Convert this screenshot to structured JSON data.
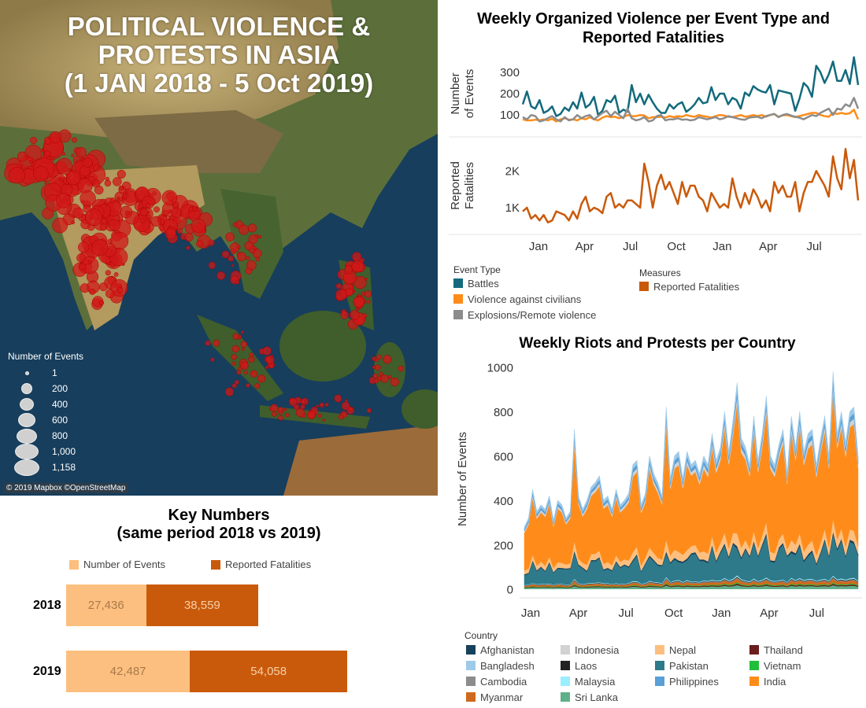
{
  "map": {
    "title_lines": [
      "POLITICAL VIOLENCE &",
      "PROTESTS IN ASIA",
      "(1 JAN 2018 - 5 Oct 2019)"
    ],
    "legend_title": "Number of Events",
    "legend_items": [
      {
        "label": "1",
        "value": 1
      },
      {
        "label": "200",
        "value": 200
      },
      {
        "label": "400",
        "value": 400
      },
      {
        "label": "600",
        "value": 600
      },
      {
        "label": "800",
        "value": 800
      },
      {
        "label": "1,000",
        "value": 1000
      },
      {
        "label": "1,158",
        "value": 1158
      }
    ],
    "credit": "© 2019 Mapbox ©OpenStreetMap",
    "colors": {
      "ocean": "#173e5c",
      "land": "#4a6a30",
      "desert": "#b09a64",
      "marker": "#d01818"
    }
  },
  "key_numbers": {
    "title_lines": [
      "Key Numbers",
      "(same period 2018 vs 2019)"
    ],
    "legend": [
      {
        "label": "Number of Events",
        "color": "#fdbf7f"
      },
      {
        "label": "Reported Fatalities",
        "color": "#c95a0b"
      }
    ]
  },
  "legends": {
    "event_type_title": "Event Type",
    "event_types": [
      {
        "label": "Battles",
        "color": "#136a7c"
      },
      {
        "label": "Violence against civilians",
        "color": "#ff8c1a"
      },
      {
        "label": "Explosions/Remote violence",
        "color": "#8c8c8c"
      }
    ],
    "measures_title": "Measures",
    "measures": [
      {
        "label": "Reported Fatalities",
        "color": "#c95a0b"
      }
    ],
    "country_title": "Country",
    "countries": [
      {
        "label": "Afghanistan",
        "color": "#17405a"
      },
      {
        "label": "Indonesia",
        "color": "#d2d2d2"
      },
      {
        "label": "Nepal",
        "color": "#fdbf7f"
      },
      {
        "label": "Thailand",
        "color": "#6b1c1c"
      },
      {
        "label": "Bangladesh",
        "color": "#9ecae9"
      },
      {
        "label": "Laos",
        "color": "#222222"
      },
      {
        "label": "Pakistan",
        "color": "#2f7a8a"
      },
      {
        "label": "Vietnam",
        "color": "#1fbf3a"
      },
      {
        "label": "Cambodia",
        "color": "#8c8c8c"
      },
      {
        "label": "Malaysia",
        "color": "#99eeff"
      },
      {
        "label": "Philippines",
        "color": "#5a9fd6"
      },
      {
        "label": "India",
        "color": "#ff8c1a"
      },
      {
        "label": "Myanmar",
        "color": "#cf6a1c"
      },
      {
        "label": "Sri Lanka",
        "color": "#5fb08a"
      }
    ]
  },
  "chart_data": [
    {
      "type": "line",
      "title": "Weekly Organized Violence per Event Type and Reported Fatalities",
      "x_tick_labels": [
        "Jan",
        "Apr",
        "Jul",
        "Oct",
        "Jan",
        "Apr",
        "Jul"
      ],
      "panels": [
        {
          "ylabel": "Number of Events",
          "y_ticks": [
            {
              "label": "100",
              "value": 100
            },
            {
              "label": "200",
              "value": 200
            },
            {
              "label": "300",
              "value": 300
            }
          ],
          "ylim": [
            20,
            380
          ],
          "series": [
            {
              "name": "Battles",
              "color": "#136a7c",
              "values": [
                150,
                210,
                140,
                130,
                170,
                110,
                120,
                140,
                95,
                105,
                135,
                120,
                160,
                130,
                205,
                135,
                150,
                185,
                100,
                120,
                170,
                160,
                190,
                110,
                125,
                115,
                240,
                160,
                200,
                150,
                195,
                160,
                130,
                110,
                110,
                150,
                130,
                150,
                160,
                115,
                130,
                150,
                180,
                155,
                160,
                230,
                170,
                200,
                200,
                150,
                180,
                170,
                130,
                205,
                190,
                235,
                220,
                210,
                205,
                240,
                150,
                215,
                210,
                205,
                200,
                120,
                175,
                250,
                230,
                185,
                330,
                300,
                250,
                290,
                350,
                260,
                260,
                310,
                245,
                370,
                240
              ]
            },
            {
              "name": "Violence against civilians",
              "color": "#ff8c1a",
              "values": [
                80,
                75,
                75,
                78,
                76,
                80,
                75,
                82,
                70,
                80,
                85,
                78,
                80,
                75,
                85,
                80,
                90,
                80,
                75,
                88,
                95,
                90,
                92,
                85,
                90,
                100,
                95,
                95,
                100,
                98,
                85,
                90,
                90,
                92,
                88,
                95,
                90,
                95,
                92,
                100,
                95,
                92,
                100,
                95,
                92,
                88,
                95,
                100,
                98,
                92,
                90,
                95,
                100,
                92,
                95,
                100,
                95,
                100,
                92,
                100,
                105,
                92,
                98,
                100,
                95,
                90,
                95,
                100,
                105,
                110,
                110,
                100,
                95,
                92,
                110,
                105,
                110,
                105,
                108,
                125,
                80
              ]
            },
            {
              "name": "Explosions/Remote violence",
              "color": "#8c8c8c",
              "values": [
                90,
                80,
                100,
                95,
                70,
                75,
                85,
                95,
                80,
                70,
                90,
                75,
                80,
                100,
                85,
                95,
                100,
                80,
                95,
                110,
                120,
                95,
                115,
                100,
                85,
                130,
                85,
                75,
                80,
                90,
                70,
                75,
                95,
                100,
                75,
                80,
                80,
                85,
                78,
                80,
                75,
                78,
                90,
                85,
                80,
                85,
                90,
                80,
                85,
                95,
                90,
                85,
                80,
                78,
                88,
                90,
                92,
                85,
                95,
                100,
                105,
                90,
                100,
                105,
                98,
                92,
                88,
                80,
                90,
                100,
                95,
                110,
                120,
                130,
                100,
                130,
                125,
                150,
                140,
                180,
                130
              ]
            }
          ]
        },
        {
          "ylabel": "Reported Fatalities",
          "y_ticks": [
            {
              "label": "1K",
              "value": 1000
            },
            {
              "label": "2K",
              "value": 2000
            }
          ],
          "ylim": [
            400,
            2800
          ],
          "series": [
            {
              "name": "Reported Fatalities",
              "color": "#c95a0b",
              "values": [
                900,
                1000,
                700,
                800,
                650,
                800,
                600,
                650,
                900,
                850,
                800,
                650,
                900,
                700,
                1100,
                1300,
                900,
                1000,
                950,
                850,
                1300,
                1400,
                1000,
                1100,
                1000,
                1200,
                1200,
                1100,
                1000,
                2200,
                1700,
                1000,
                1600,
                1900,
                1500,
                1700,
                1400,
                1100,
                1700,
                1300,
                1600,
                1600,
                1300,
                1200,
                900,
                1400,
                1200,
                1000,
                1100,
                1000,
                1800,
                1300,
                1000,
                1400,
                1100,
                1500,
                1300,
                1000,
                1200,
                900,
                1700,
                1400,
                1600,
                1300,
                1300,
                1700,
                900,
                1400,
                1700,
                1700,
                2000,
                1800,
                1600,
                1300,
                2400,
                1800,
                1500,
                2600,
                1800,
                2300,
                1200
              ]
            }
          ]
        }
      ]
    },
    {
      "type": "area",
      "stacked": true,
      "title": "Weekly Riots and Protests per Country",
      "ylabel": "Number of Events",
      "y_ticks": [
        0,
        200,
        400,
        600,
        800,
        1000
      ],
      "ylim": [
        -40,
        1030
      ],
      "x_tick_labels": [
        "Jan",
        "Apr",
        "Jul",
        "Oct",
        "Jan",
        "Apr",
        "Jul"
      ],
      "total": [
        280,
        320,
        450,
        350,
        380,
        360,
        420,
        310,
        400,
        380,
        320,
        350,
        720,
        420,
        360,
        400,
        460,
        480,
        510,
        400,
        420,
        360,
        450,
        380,
        400,
        430,
        560,
        580,
        380,
        430,
        600,
        520,
        480,
        420,
        820,
        500,
        600,
        620,
        500,
        620,
        560,
        580,
        520,
        600,
        560,
        700,
        580,
        640,
        800,
        620,
        760,
        930,
        680,
        640,
        560,
        780,
        580,
        700,
        870,
        600,
        560,
        650,
        720,
        520,
        780,
        640,
        800,
        620,
        700,
        720,
        560,
        680,
        780,
        600,
        980,
        700,
        800,
        660,
        800,
        820,
        600
      ],
      "series": [
        {
          "name": "Afghanistan",
          "color": "#17405a",
          "share": 0.012
        },
        {
          "name": "Bangladesh",
          "color": "#9ecae9",
          "share": 0.035
        },
        {
          "name": "Cambodia",
          "color": "#8c8c8c",
          "share": 0.005
        },
        {
          "name": "India",
          "color": "#ff8c1a",
          "share": 0.6
        },
        {
          "name": "Indonesia",
          "color": "#d2d2d2",
          "share": 0.03
        },
        {
          "name": "Laos",
          "color": "#222222",
          "share": 0.004
        },
        {
          "name": "Malaysia",
          "color": "#99eeff",
          "share": 0.006
        },
        {
          "name": "Myanmar",
          "color": "#cf6a1c",
          "share": 0.018
        },
        {
          "name": "Nepal",
          "color": "#fdbf7f",
          "share": 0.06
        },
        {
          "name": "Pakistan",
          "color": "#2f7a8a",
          "share": 0.17
        },
        {
          "name": "Philippines",
          "color": "#5a9fd6",
          "share": 0.03
        },
        {
          "name": "Sri Lanka",
          "color": "#5fb08a",
          "share": 0.018
        },
        {
          "name": "Thailand",
          "color": "#6b1c1c",
          "share": 0.007
        },
        {
          "name": "Vietnam",
          "color": "#1fbf3a",
          "share": 0.005
        }
      ]
    },
    {
      "type": "bar",
      "orientation": "horizontal",
      "stacked": true,
      "title": "Key Numbers (same period 2018 vs 2019)",
      "categories": [
        "2018",
        "2019"
      ],
      "series": [
        {
          "name": "Number of Events",
          "color": "#fdbf7f",
          "values": [
            27436,
            42487
          ],
          "labels": [
            "27,436",
            "42,487"
          ]
        },
        {
          "name": "Reported Fatalities",
          "color": "#c95a0b",
          "values": [
            38559,
            54058
          ],
          "labels": [
            "38,559",
            "54,058"
          ]
        }
      ]
    }
  ]
}
